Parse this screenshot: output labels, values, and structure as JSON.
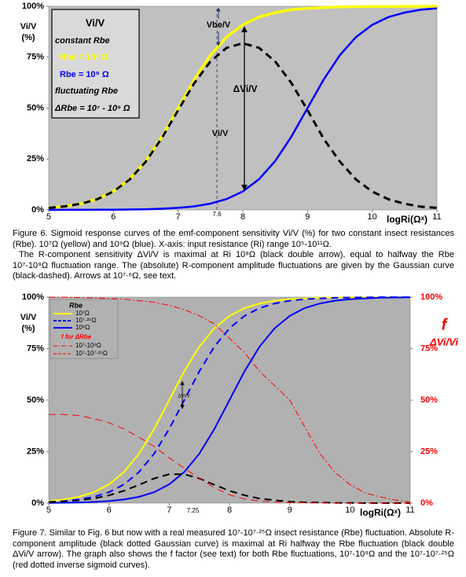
{
  "chart_data": [
    {
      "type": "line",
      "y_label": [
        "Vi/V",
        "(%)"
      ],
      "x_title": "logRi(Ωˣ)",
      "xlim": [
        5,
        11
      ],
      "xticks": [
        5,
        6,
        7,
        8,
        9,
        10,
        11
      ],
      "ylim": [
        0,
        100
      ],
      "yticks": [
        {
          "value": 0,
          "label": "0%"
        },
        {
          "value": 25,
          "label": "25%"
        },
        {
          "value": 50,
          "label": "50%"
        },
        {
          "value": 75,
          "label": "75%"
        },
        {
          "value": 100,
          "label": "100%"
        }
      ],
      "grid": false,
      "x": [
        5,
        5.25,
        5.5,
        5.75,
        6,
        6.25,
        6.5,
        6.75,
        7,
        7.25,
        7.5,
        7.75,
        8,
        8.25,
        8.5,
        8.75,
        9,
        9.25,
        9.5,
        9.75,
        10,
        10.25,
        10.5,
        10.75,
        11
      ],
      "series": [
        {
          "name": "Rbe = 10⁷ Ω",
          "color": "#ffff00",
          "dash": "solid",
          "values": [
            0.99,
            1.75,
            3.07,
            5.32,
            9.09,
            15.1,
            24.0,
            36.0,
            50,
            64.0,
            76.0,
            84.9,
            90.9,
            94.7,
            96.9,
            98.3,
            99.0,
            99.4,
            99.7,
            99.8,
            99.9,
            99.9,
            100,
            100,
            100
          ]
        },
        {
          "name": "Rbe = 10⁹ Ω",
          "color": "#0000ff",
          "dash": "solid",
          "values": [
            0.01,
            0.02,
            0.03,
            0.06,
            0.1,
            0.18,
            0.32,
            0.56,
            0.99,
            1.75,
            3.07,
            5.32,
            9.09,
            15.1,
            24.0,
            36.0,
            50,
            64.0,
            76.0,
            84.9,
            90.9,
            94.7,
            96.9,
            98.3,
            99.0
          ]
        },
        {
          "name": "ΔRbe = 10⁷ - 10⁹ Ω",
          "color": "#000000",
          "dash": "dashed",
          "values": [
            0.98,
            1.73,
            3.04,
            5.26,
            8.99,
            14.9,
            23.7,
            35.4,
            49.0,
            62.3,
            72.9,
            79.6,
            81.8,
            79.6,
            72.9,
            62.3,
            49.0,
            34.9,
            23.7,
            14.9,
            9.0,
            5.2,
            3.0,
            1.6,
            1.0
          ]
        }
      ],
      "legend_title": "Vi/V",
      "legend_groups": [
        "constant Rbe",
        "fluctuating Rbe"
      ],
      "markers": [
        {
          "value": 7.6,
          "label": "7.6"
        }
      ],
      "annotations": [
        "Vbe/V",
        "ΔVi/V",
        "Vi/V"
      ],
      "caption": [
        "Figure 6.  Sigmoid response curves of the emf-component sensitivity Vi/V (%) for two constant insect resistances (Rbe). 10⁷Ω (yellow) and 10⁹Ω (blue). X-axis: input resistance (Ri) range 10⁵-10¹¹Ω.",
        "The R-component sensitivity ΔVi/V is maximal at Ri 10⁸Ω (black double arrow), equal to halfway the Rbe 10⁷-10⁹Ω fluctuation range. The (absolute) R-component amplitude fluctuations are given by the Gaussian curve (black-dashed). Arrows at 10⁷·⁶Ω, see text."
      ]
    },
    {
      "type": "line",
      "y_label": [
        "Vi/V",
        "(%)"
      ],
      "y2_label": [
        "f",
        "ΔVi/Vi"
      ],
      "x_title": "logRi(Ωˣ)",
      "xlim": [
        5,
        11
      ],
      "xticks": [
        5,
        6,
        7,
        8,
        9,
        10,
        11
      ],
      "ylim": [
        0,
        100
      ],
      "yticks": [
        {
          "value": 0,
          "label": "0%"
        },
        {
          "value": 25,
          "label": "25%"
        },
        {
          "value": 50,
          "label": "50%"
        },
        {
          "value": 75,
          "label": "75%"
        },
        {
          "value": 100,
          "label": "100%"
        }
      ],
      "y2lim": [
        0,
        100
      ],
      "y2ticks": [
        {
          "value": 0,
          "label": "0%"
        },
        {
          "value": 25,
          "label": "25%"
        },
        {
          "value": 50,
          "label": "50%"
        },
        {
          "value": 75,
          "label": "75%"
        },
        {
          "value": 100,
          "label": "100%"
        }
      ],
      "grid": false,
      "x": [
        5,
        5.25,
        5.5,
        5.75,
        6,
        6.25,
        6.5,
        6.75,
        7,
        7.25,
        7.5,
        7.75,
        8,
        8.25,
        8.5,
        8.75,
        9,
        9.25,
        9.5,
        9.75,
        10,
        10.25,
        10.5,
        10.75,
        11
      ],
      "series": [
        {
          "name": "10⁷Ω",
          "color": "#ffff00",
          "dash": "solid",
          "values": [
            0.99,
            1.75,
            3.07,
            5.32,
            9.09,
            15.1,
            24.0,
            36.0,
            50,
            64.0,
            76.0,
            84.9,
            90.9,
            94.7,
            96.9,
            98.3,
            99.0,
            99.4,
            99.7,
            99.8,
            99.9,
            99.9,
            100,
            100,
            100
          ]
        },
        {
          "name": "10⁷·²⁵Ω",
          "color": "#0000ff",
          "dash": "dashed",
          "values": [
            0.56,
            0.99,
            1.75,
            3.07,
            5.32,
            9.09,
            15.1,
            24.0,
            36.0,
            50,
            64.0,
            76.0,
            84.9,
            90.9,
            94.7,
            96.9,
            98.3,
            99.0,
            99.4,
            99.7,
            99.8,
            99.9,
            100,
            100,
            100
          ]
        },
        {
          "name": "10⁸Ω",
          "color": "#0000ff",
          "dash": "solid",
          "values": [
            0.1,
            0.18,
            0.32,
            0.56,
            0.99,
            1.75,
            3.07,
            5.32,
            9.09,
            15.1,
            24.0,
            36.0,
            50,
            64.0,
            76.0,
            84.9,
            90.9,
            94.7,
            96.9,
            98.3,
            99.0,
            99.4,
            99.7,
            99.8,
            99.9
          ]
        },
        {
          "color": "#000000",
          "dash": "dashed",
          "values": [
            0.43,
            0.76,
            1.32,
            2.25,
            3.77,
            6.0,
            8.9,
            12.0,
            14.0,
            14.0,
            12.0,
            8.9,
            6.0,
            3.8,
            2.2,
            1.4,
            0.7,
            0.4,
            0.3,
            0.1,
            0.1,
            0,
            0,
            0,
            0
          ]
        },
        {
          "name": "10⁷-10⁹Ω",
          "color": "#ff0000",
          "dash": "dashdot",
          "axis": "y2",
          "values": [
            100,
            100,
            99.8,
            99.6,
            99.3,
            99,
            98.3,
            97.5,
            96,
            94,
            91,
            87,
            80,
            73,
            64,
            57,
            50,
            37,
            24,
            15,
            9,
            5,
            3,
            1.5,
            0.5
          ]
        },
        {
          "name": "10⁷-10⁷·²⁵Ω",
          "color": "#ff0000",
          "dash": "dashed",
          "axis": "y2",
          "values": [
            43,
            43,
            42.5,
            41,
            39,
            36,
            32,
            27.5,
            22,
            17,
            12,
            7.5,
            4,
            2,
            1,
            0.5,
            0.3,
            0.2,
            0.1,
            0,
            0,
            0,
            0,
            0,
            0
          ]
        }
      ],
      "legend_groups": [
        "Rbe",
        "f for ΔRbe"
      ],
      "markers": [
        {
          "value": 7.25,
          "label": "7.25"
        }
      ],
      "annotations": [
        "ΔVi/V"
      ],
      "caption": [
        "Figure 7. Similar to Fig. 6 but now with a real measured 10⁷-10⁷·²⁵Ω insect resistance (Rbe) fluctuation. Absolute R-component amplitude (black dotted Gaussian curve) is maximal at Ri halfway the Rbe fluctuation (black double ΔVi/V arrow). The graph also shows the f factor (see text) for both Rbe fluctuations, 10⁷-10⁹Ω  and the 10⁷-10⁷·²⁵Ω (red dotted inverse sigmoid curves)."
      ]
    }
  ]
}
